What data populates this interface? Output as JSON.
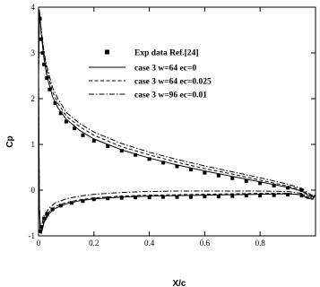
{
  "chart_data": {
    "type": "line",
    "xlabel": "X/c",
    "ylabel": "Cp",
    "xlim": [
      0,
      1
    ],
    "ylim": [
      -1,
      4
    ],
    "xticks": [
      0,
      0.2,
      0.4,
      0.6,
      0.8
    ],
    "xtick_labels": [
      "0",
      "0.2",
      "0.4",
      "0.6",
      "0.8"
    ],
    "yticks": [
      -1,
      0,
      1,
      2,
      3,
      4
    ],
    "ytick_labels": [
      "-1",
      "0",
      "1",
      "2",
      "3",
      "4"
    ],
    "grid": false,
    "legend_position": "top-right",
    "series": [
      {
        "name": "Exp data Ref.[24]",
        "style": "markers",
        "upper": {
          "x": [
            0.005,
            0.01,
            0.015,
            0.02,
            0.03,
            0.04,
            0.06,
            0.08,
            0.1,
            0.13,
            0.16,
            0.2,
            0.25,
            0.3,
            0.35,
            0.4,
            0.45,
            0.5,
            0.55,
            0.6,
            0.65,
            0.7,
            0.75,
            0.8,
            0.85,
            0.9,
            0.95
          ],
          "y": [
            3.75,
            3.3,
            3.0,
            2.75,
            2.45,
            2.2,
            1.9,
            1.68,
            1.5,
            1.35,
            1.2,
            1.08,
            0.96,
            0.86,
            0.77,
            0.68,
            0.6,
            0.52,
            0.45,
            0.38,
            0.32,
            0.26,
            0.2,
            0.15,
            0.1,
            0.05,
            0.0
          ]
        },
        "lower": {
          "x": [
            0.005,
            0.01,
            0.02,
            0.03,
            0.05,
            0.08,
            0.12,
            0.16,
            0.2,
            0.25,
            0.3,
            0.35,
            0.4,
            0.45,
            0.5,
            0.55,
            0.6,
            0.65,
            0.7,
            0.75,
            0.8,
            0.85,
            0.9,
            0.95
          ],
          "y": [
            -0.9,
            -0.8,
            -0.62,
            -0.52,
            -0.42,
            -0.34,
            -0.28,
            -0.24,
            -0.2,
            -0.18,
            -0.17,
            -0.16,
            -0.16,
            -0.15,
            -0.15,
            -0.15,
            -0.14,
            -0.14,
            -0.13,
            -0.12,
            -0.12,
            -0.11,
            -0.1,
            -0.12
          ]
        }
      },
      {
        "name": "case 3 w=64 ec=0",
        "style": "solid",
        "upper": {
          "x": [
            0,
            0.003,
            0.006,
            0.01,
            0.02,
            0.03,
            0.05,
            0.07,
            0.1,
            0.15,
            0.2,
            0.3,
            0.4,
            0.5,
            0.6,
            0.7,
            0.8,
            0.9,
            0.95,
            0.97,
            0.99,
            1.0
          ],
          "y": [
            2.5,
            3.95,
            3.7,
            3.4,
            2.85,
            2.5,
            2.05,
            1.8,
            1.55,
            1.3,
            1.12,
            0.88,
            0.7,
            0.55,
            0.42,
            0.3,
            0.18,
            0.06,
            -0.02,
            -0.1,
            -0.15,
            -0.1
          ]
        },
        "lower": {
          "x": [
            0,
            0.003,
            0.006,
            0.01,
            0.02,
            0.04,
            0.06,
            0.1,
            0.15,
            0.2,
            0.3,
            0.4,
            0.5,
            0.6,
            0.7,
            0.8,
            0.9,
            0.95,
            0.97,
            0.99,
            1.0
          ],
          "y": [
            2.5,
            -0.4,
            -0.9,
            -0.95,
            -0.7,
            -0.5,
            -0.4,
            -0.3,
            -0.23,
            -0.19,
            -0.15,
            -0.13,
            -0.12,
            -0.11,
            -0.1,
            -0.09,
            -0.08,
            -0.1,
            -0.18,
            -0.2,
            -0.1
          ]
        }
      },
      {
        "name": "case 3 w=64 ec=0.025",
        "style": "dashed",
        "upper": {
          "x": [
            0,
            0.003,
            0.006,
            0.01,
            0.02,
            0.03,
            0.05,
            0.07,
            0.1,
            0.15,
            0.2,
            0.3,
            0.4,
            0.5,
            0.6,
            0.7,
            0.8,
            0.9,
            0.95,
            0.97,
            0.99,
            1.0
          ],
          "y": [
            2.5,
            3.9,
            3.72,
            3.45,
            2.95,
            2.62,
            2.15,
            1.9,
            1.62,
            1.38,
            1.2,
            0.95,
            0.77,
            0.61,
            0.47,
            0.35,
            0.22,
            0.09,
            0.01,
            -0.08,
            -0.14,
            -0.1
          ]
        },
        "lower": {
          "x": [
            0,
            0.003,
            0.006,
            0.01,
            0.02,
            0.04,
            0.06,
            0.1,
            0.15,
            0.2,
            0.3,
            0.4,
            0.5,
            0.6,
            0.7,
            0.8,
            0.9,
            0.95,
            0.97,
            0.99,
            1.0
          ],
          "y": [
            2.5,
            -0.35,
            -0.85,
            -0.9,
            -0.65,
            -0.46,
            -0.36,
            -0.27,
            -0.21,
            -0.17,
            -0.13,
            -0.11,
            -0.1,
            -0.09,
            -0.08,
            -0.07,
            -0.07,
            -0.1,
            -0.16,
            -0.19,
            -0.1
          ]
        }
      },
      {
        "name": "case 3 w=96 ec=0.01",
        "style": "dashdot",
        "upper": {
          "x": [
            0,
            0.003,
            0.006,
            0.01,
            0.02,
            0.03,
            0.05,
            0.07,
            0.1,
            0.15,
            0.2,
            0.3,
            0.4,
            0.5,
            0.6,
            0.7,
            0.8,
            0.9,
            0.95,
            0.97,
            0.99,
            1.0
          ],
          "y": [
            2.5,
            3.85,
            3.75,
            3.5,
            3.0,
            2.7,
            2.25,
            2.0,
            1.7,
            1.45,
            1.27,
            1.02,
            0.83,
            0.67,
            0.53,
            0.4,
            0.27,
            0.13,
            0.04,
            -0.05,
            -0.12,
            -0.1
          ]
        },
        "lower": {
          "x": [
            0,
            0.003,
            0.006,
            0.01,
            0.02,
            0.04,
            0.06,
            0.1,
            0.15,
            0.2,
            0.3,
            0.4,
            0.5,
            0.6,
            0.7,
            0.8,
            0.9,
            0.95,
            0.97,
            0.99,
            1.0
          ],
          "y": [
            2.5,
            -0.3,
            -0.75,
            -0.8,
            -0.55,
            -0.38,
            -0.28,
            -0.19,
            -0.13,
            -0.09,
            -0.05,
            -0.03,
            -0.02,
            -0.02,
            -0.02,
            -0.02,
            -0.03,
            -0.07,
            -0.14,
            -0.18,
            -0.1
          ]
        }
      }
    ]
  }
}
